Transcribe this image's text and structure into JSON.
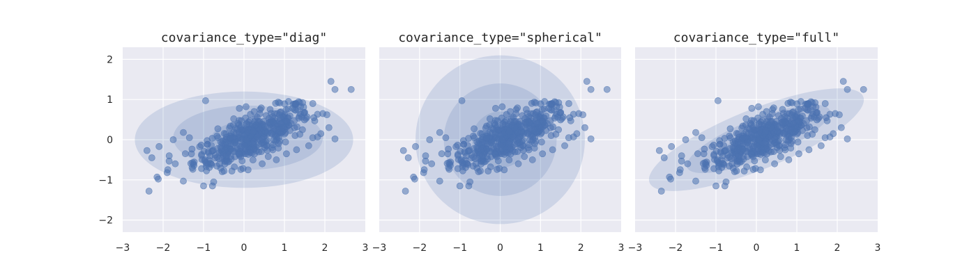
{
  "chart_data": [
    {
      "type": "scatter",
      "title": "covariance_type=\"diag\"",
      "xlim": [
        -3,
        3
      ],
      "ylim": [
        -2.3,
        2.3
      ],
      "x_ticks": [
        "−3",
        "−2",
        "−1",
        "0",
        "1",
        "2",
        "3"
      ],
      "y_ticks": [
        "2",
        "1",
        "0",
        "−1",
        "−2"
      ],
      "grid": true,
      "ellipses": [
        {
          "mean": [
            0,
            0
          ],
          "sd": [
            2.7,
            1.2
          ],
          "angle": 0,
          "opacity": 0.18
        },
        {
          "mean": [
            0.1,
            0.05
          ],
          "sd": [
            1.85,
            0.8
          ],
          "angle": 0,
          "opacity": 0.18
        },
        {
          "mean": [
            0.1,
            0.05
          ],
          "sd": [
            0.9,
            0.4
          ],
          "angle": 0,
          "opacity": 0.18
        }
      ]
    },
    {
      "type": "scatter",
      "title": "covariance_type=\"spherical\"",
      "xlim": [
        -3,
        3
      ],
      "ylim": [
        -2.3,
        2.3
      ],
      "x_ticks": [
        "−3",
        "−2",
        "−1",
        "0",
        "1",
        "2",
        "3"
      ],
      "y_ticks": [
        "2",
        "1",
        "0",
        "−1",
        "−2"
      ],
      "grid": true,
      "ellipses": [
        {
          "mean": [
            0,
            0
          ],
          "sd": [
            2.1,
            2.1
          ],
          "angle": 0,
          "opacity": 0.18
        },
        {
          "mean": [
            0,
            0
          ],
          "sd": [
            1.4,
            1.4
          ],
          "angle": 0,
          "opacity": 0.18
        },
        {
          "mean": [
            0,
            0
          ],
          "sd": [
            0.7,
            0.7
          ],
          "angle": 0,
          "opacity": 0.18
        }
      ]
    },
    {
      "type": "scatter",
      "title": "covariance_type=\"full\"",
      "xlim": [
        -3,
        3
      ],
      "ylim": [
        -2.3,
        2.3
      ],
      "x_ticks": [
        "−3",
        "−2",
        "−1",
        "0",
        "1",
        "2",
        "3"
      ],
      "y_ticks": [
        "2",
        "1",
        "0",
        "−1",
        "−2"
      ],
      "grid": true,
      "ellipses": [
        {
          "mean": [
            0,
            0
          ],
          "sd": [
            2.85,
            0.75
          ],
          "angle": 22,
          "opacity": 0.18
        },
        {
          "mean": [
            0.05,
            0.02
          ],
          "sd": [
            1.9,
            0.5
          ],
          "angle": 22,
          "opacity": 0.18
        },
        {
          "mean": [
            0.05,
            0.02
          ],
          "sd": [
            0.95,
            0.25
          ],
          "angle": 22,
          "opacity": 0.18
        }
      ]
    }
  ],
  "points": [
    [
      2.15,
      1.45
    ],
    [
      2.25,
      1.25
    ],
    [
      2.65,
      1.25
    ],
    [
      -2.35,
      -1.28
    ],
    [
      -2.4,
      -0.27
    ],
    [
      -2.28,
      -0.45
    ],
    [
      -2.1,
      -0.17
    ],
    [
      -2.15,
      -0.93
    ],
    [
      -2.12,
      -0.98
    ],
    [
      -1.9,
      -0.82
    ],
    [
      -1.5,
      -1.03
    ],
    [
      -1.0,
      -1.15
    ],
    [
      -0.75,
      -1.05
    ],
    [
      -0.78,
      -1.15
    ],
    [
      -0.95,
      0.97
    ],
    [
      1.95,
      0.65
    ],
    [
      2.05,
      0.62
    ],
    [
      2.1,
      0.3
    ],
    [
      2.25,
      0.02
    ],
    [
      1.9,
      0.15
    ],
    [
      1.75,
      0.47
    ],
    [
      1.5,
      0.68
    ],
    [
      1.45,
      0.92
    ],
    [
      1.1,
      0.95
    ],
    [
      1.2,
      0.78
    ],
    [
      -1.5,
      0.18
    ],
    [
      -1.35,
      0.05
    ],
    [
      -1.3,
      -0.35
    ],
    [
      -1.25,
      -0.6
    ],
    [
      -1.05,
      -0.72
    ],
    [
      -1.85,
      -0.4
    ],
    [
      -1.75,
      0.0
    ],
    [
      -1.7,
      -0.6
    ],
    [
      -0.3,
      -0.78
    ],
    [
      0.1,
      -0.75
    ],
    [
      0.45,
      -0.6
    ],
    [
      0.8,
      -0.5
    ],
    [
      0.6,
      -0.42
    ],
    [
      1.05,
      -0.35
    ],
    [
      1.3,
      -0.25
    ],
    [
      1.6,
      -0.15
    ],
    [
      1.7,
      0.05
    ],
    [
      0.05,
      0.82
    ],
    [
      0.25,
      0.7
    ],
    [
      0.55,
      0.6
    ]
  ]
}
